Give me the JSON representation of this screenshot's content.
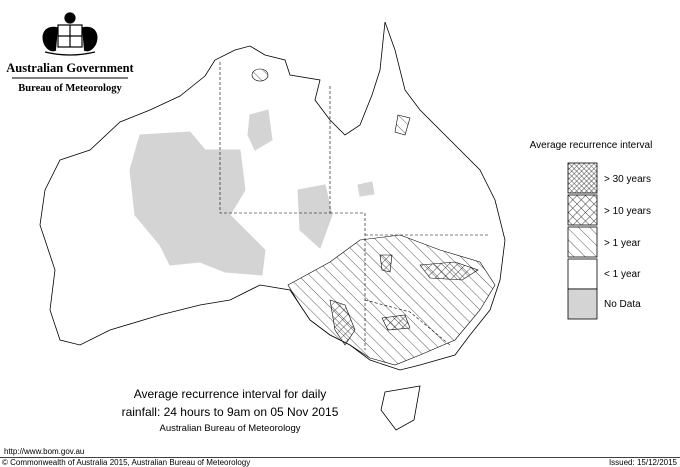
{
  "header": {
    "title": "Australian Government",
    "subtitle": "Bureau of Meteorology"
  },
  "legend": {
    "title": "Average recurrence interval",
    "items": [
      "> 30 years",
      "> 10 years",
      "> 1 year",
      "< 1 year",
      "No Data"
    ]
  },
  "caption": {
    "lines": [
      "Average recurrence interval for daily",
      "rainfall: 24 hours to 9am on 05 Nov 2015"
    ],
    "source": "Australian Bureau of Meteorology"
  },
  "footer": {
    "url": "http://www.bom.gov.au",
    "copyright": "© Commonwealth of Australia 2015, Australian Bureau of Meteorology",
    "issued": "Issued: 15/12/2015"
  }
}
